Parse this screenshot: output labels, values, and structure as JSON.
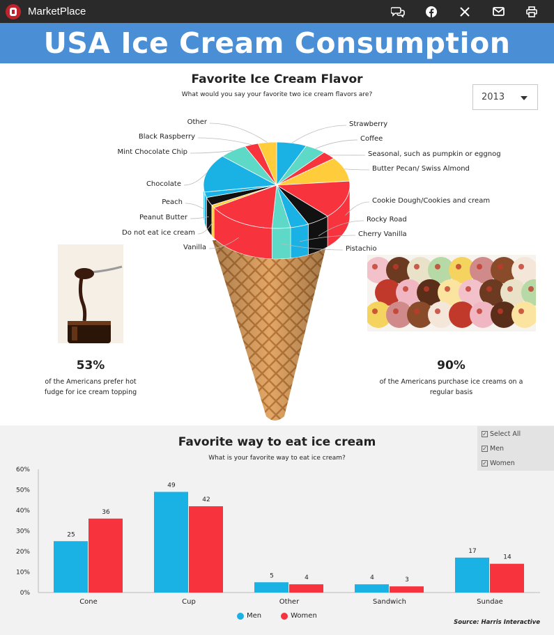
{
  "app": {
    "name": "MarketPlace",
    "icons": [
      "chat-icon",
      "facebook-icon",
      "x-icon",
      "mail-icon",
      "print-icon"
    ]
  },
  "banner": {
    "title": "USA Ice Cream Consumption",
    "color": "#4a8fd6"
  },
  "flavor_section": {
    "title": "Favorite Ice Cream Flavor",
    "subtitle": "What would you say your favorite two ice cream flavors are?",
    "year_selected": "2013"
  },
  "stats": [
    {
      "value": "53%",
      "text": "of the Americans prefer hot fudge for ice cream topping"
    },
    {
      "value": "90%",
      "text": "of the Americans purchase ice creams on a regular basis"
    }
  ],
  "way_section": {
    "title": "Favorite way to eat ice cream",
    "subtitle": "What is your favorite way to eat ice cream?",
    "filters": [
      "Select All",
      "Men",
      "Women"
    ],
    "source": "Source: Harris Interactive"
  },
  "colors": {
    "blue": "#1ab1e4",
    "red": "#f7333d",
    "yellow": "#ffcd3c",
    "teal": "#5fd9c7",
    "black": "#111111"
  },
  "chart_data": [
    {
      "type": "pie",
      "title": "Favorite Ice Cream Flavor",
      "slices": [
        {
          "label": "Strawberry",
          "value": 6.5,
          "color": "#1ab1e4"
        },
        {
          "label": "Coffee",
          "value": 4.5,
          "color": "#5fd9c7"
        },
        {
          "label": "Seasonal, such as pumpkin or eggnog",
          "value": 3,
          "color": "#f7333d"
        },
        {
          "label": "Butter Pecan/ Swiss Almond",
          "value": 9,
          "color": "#ffcd3c"
        },
        {
          "label": "Cookie Dough/Cookies and cream",
          "value": 14,
          "color": "#f7333d"
        },
        {
          "label": "Rocky Road",
          "value": 5,
          "color": "#111111"
        },
        {
          "label": "Cherry Vanilla",
          "value": 4,
          "color": "#1ab1e4"
        },
        {
          "label": "Pistachio",
          "value": 4,
          "color": "#5fd9c7"
        },
        {
          "label": "Vanilla",
          "value": 15,
          "color": "#f7333d"
        },
        {
          "label": "Do not eat ice cream",
          "value": 1,
          "color": "#ffcd3c"
        },
        {
          "label": "Peanut Butter",
          "value": 3,
          "color": "#111111"
        },
        {
          "label": "Peach",
          "value": 2,
          "color": "#1ab1e4"
        },
        {
          "label": "Chocolate",
          "value": 14,
          "color": "#1ab1e4"
        },
        {
          "label": "Mint Chocolate Chip",
          "value": 6,
          "color": "#5fd9c7"
        },
        {
          "label": "Black Raspberry",
          "value": 3,
          "color": "#f7333d"
        },
        {
          "label": "Other",
          "value": 4,
          "color": "#ffcd3c"
        }
      ]
    },
    {
      "type": "bar",
      "title": "Favorite way to eat ice cream",
      "categories": [
        "Cone",
        "Cup",
        "Other",
        "Sandwich",
        "Sundae"
      ],
      "series": [
        {
          "name": "Men",
          "values": [
            25,
            49,
            5,
            4,
            17
          ],
          "color": "#1ab1e4"
        },
        {
          "name": "Women",
          "values": [
            36,
            42,
            4,
            3,
            14
          ],
          "color": "#f7333d"
        }
      ],
      "ylim": [
        0,
        60
      ],
      "yticks": [
        "0%",
        "10%",
        "20%",
        "30%",
        "40%",
        "50%",
        "60%"
      ],
      "legend": "bottom-center"
    }
  ]
}
